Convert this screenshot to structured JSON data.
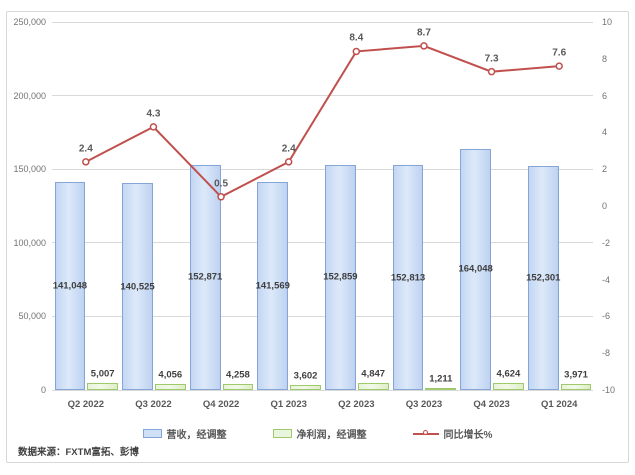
{
  "chart_data": {
    "type": "combo",
    "categories": [
      "Q2 2022",
      "Q3 2022",
      "Q4 2022",
      "Q1 2023",
      "Q2 2023",
      "Q3 2023",
      "Q4 2023",
      "Q1 2024"
    ],
    "series": [
      {
        "name": "营收，经调整",
        "type": "bar",
        "axis": "left",
        "values": [
          141048,
          140525,
          152871,
          141569,
          152859,
          152813,
          164048,
          152301
        ],
        "labels": [
          "141,048",
          "140,525",
          "152,871",
          "141,569",
          "152,859",
          "152,813",
          "164,048",
          "152,301"
        ],
        "fill": "#cfe0f7",
        "border": "#84a5d6"
      },
      {
        "name": "净利润，经调整",
        "type": "bar",
        "axis": "left",
        "values": [
          5007,
          4056,
          4258,
          3602,
          4847,
          1211,
          4624,
          3971
        ],
        "labels": [
          "5,007",
          "4,056",
          "4,258",
          "3,602",
          "4,847",
          "1,211",
          "4,624",
          "3,971"
        ],
        "fill": "#e9f5dc",
        "border": "#a0c96e"
      },
      {
        "name": "同比增长%",
        "type": "line",
        "axis": "right",
        "values": [
          2.4,
          4.3,
          0.5,
          2.4,
          8.4,
          8.7,
          7.3,
          7.6
        ],
        "labels": [
          "2.4",
          "4.3",
          "0.5",
          "2.4",
          "8.4",
          "8.7",
          "7.3",
          "7.6"
        ],
        "color": "#c0504d"
      }
    ],
    "left_axis": {
      "min": 0,
      "max": 250000,
      "ticks": [
        "250,000",
        "200,000",
        "150,000",
        "100,000",
        "50,000",
        "0"
      ]
    },
    "right_axis": {
      "min": -10,
      "max": 10,
      "ticks": [
        "10",
        "8",
        "6",
        "4",
        "2",
        "0",
        "-2",
        "-4",
        "-6",
        "-8",
        "-10"
      ]
    },
    "grid": true,
    "legend_position": "bottom"
  },
  "source": {
    "label": "数据来源：FXTM富拓、彭博"
  }
}
